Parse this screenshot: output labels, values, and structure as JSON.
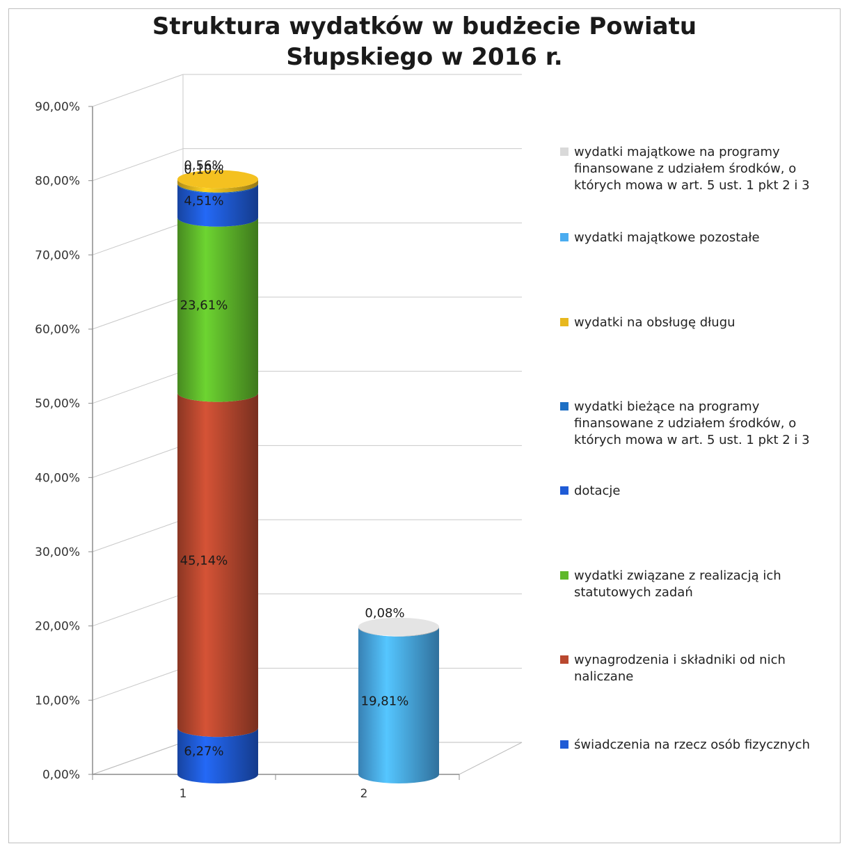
{
  "chart_data": {
    "type": "bar",
    "title": "Struktura wydatków w budżecie Powiatu Słupskiego w 2016 r.",
    "title_lines": [
      "Struktura wydatków w budżecie Powiatu",
      "Słupskiego w 2016 r."
    ],
    "categories": [
      "1",
      "2"
    ],
    "stacked": true,
    "three_d": true,
    "ylim": [
      0,
      90
    ],
    "y_ticks": [
      "0,00%",
      "10,00%",
      "20,00%",
      "30,00%",
      "40,00%",
      "50,00%",
      "60,00%",
      "70,00%",
      "80,00%",
      "90,00%"
    ],
    "grid": true,
    "legend_position": "right",
    "series": [
      {
        "name": "świadczenia na rzecz osób fizycznych",
        "color": "#1f5bd6",
        "values": [
          6.27,
          null
        ],
        "labels": [
          "6,27%",
          ""
        ]
      },
      {
        "name": "wynagrodzenia i składniki od nich naliczane",
        "color": "#b9482f",
        "values": [
          45.14,
          null
        ],
        "labels": [
          "45,14%",
          ""
        ]
      },
      {
        "name": "wydatki związane z realizacją ich statutowych zadań",
        "color": "#5fb82b",
        "values": [
          23.61,
          null
        ],
        "labels": [
          "23,61%",
          ""
        ]
      },
      {
        "name": "dotacje",
        "color": "#1f5bd6",
        "values": [
          4.51,
          null
        ],
        "labels": [
          "4,51%",
          ""
        ]
      },
      {
        "name": "wydatki bieżące na programy finansowane z udziałem środków, o których mowa w art. 5 ust. 1 pkt 2 i 3",
        "color": "#1d6fc4",
        "values": [
          0.1,
          null
        ],
        "labels": [
          "0,10%",
          ""
        ]
      },
      {
        "name": "wydatki na obsługę długu",
        "color": "#e8b81e",
        "values": [
          0.56,
          null
        ],
        "labels": [
          "0,56%",
          ""
        ]
      },
      {
        "name": "wydatki majątkowe pozostałe",
        "color": "#4aacf0",
        "values": [
          null,
          19.81
        ],
        "labels": [
          "",
          "19,81%"
        ]
      },
      {
        "name": "wydatki majątkowe na programy finansowane z udziałem środków, o których mowa w art. 5 ust. 1 pkt 2 i 3",
        "color": "#d9d9d9",
        "values": [
          null,
          0.08
        ],
        "labels": [
          "",
          "0,08%"
        ]
      }
    ]
  },
  "legend": {
    "items": [
      {
        "label": "wydatki majątkowe na programy finansowane z udziałem środków, o których mowa w art. 5 ust. 1 pkt 2 i 3",
        "color": "#d9d9d9"
      },
      {
        "label": "wydatki majątkowe pozostałe",
        "color": "#4aacf0"
      },
      {
        "label": "wydatki na obsługę długu",
        "color": "#e8b81e"
      },
      {
        "label": "wydatki bieżące na programy finansowane z udziałem środków, o których mowa w art. 5 ust. 1 pkt 2 i 3",
        "color": "#1d6fc4"
      },
      {
        "label": "dotacje",
        "color": "#1f5bd6"
      },
      {
        "label": "wydatki związane z realizacją ich statutowych zadań",
        "color": "#5fb82b"
      },
      {
        "label": "wynagrodzenia i składniki od nich naliczane",
        "color": "#b9482f"
      },
      {
        "label": "świadczenia na rzecz osób fizycznych",
        "color": "#1f5bd6"
      }
    ]
  }
}
